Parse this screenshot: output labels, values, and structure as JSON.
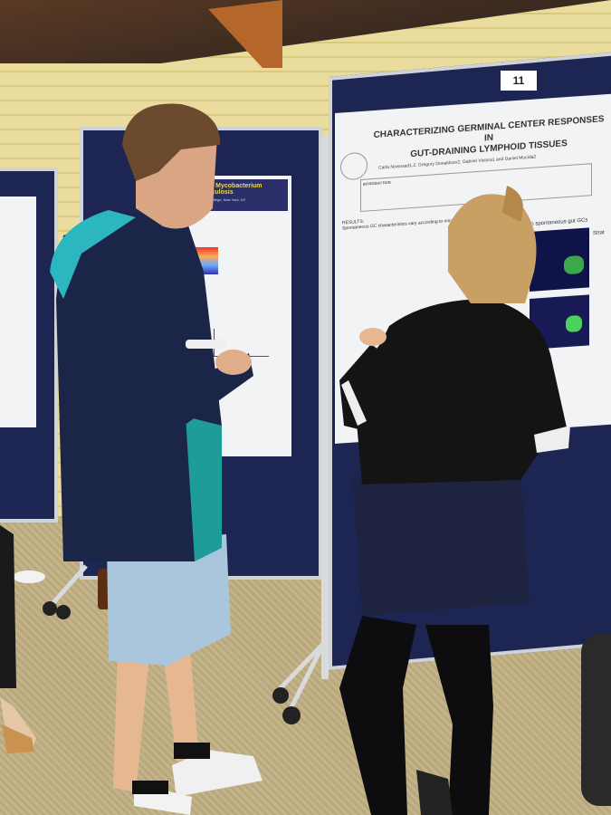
{
  "scene": "poster-session",
  "posters": {
    "right": {
      "number": "11",
      "title_line1": "CHARACTERIZING GERMINAL CENTER RESPONSES IN",
      "title_line2": "GUT-DRAINING LYMPHOID TISSUES",
      "authors": "Carla Nowosad1,2, Gregory Donaldson2, Gabriel Victora1 and Daniel Mucida2",
      "intro_label": "INTRODUCTION",
      "results_label": "RESULTS:",
      "results_text": "Spontaneous GC characteristics vary according to microbial load",
      "section_heading": "in spontaneous gut GCs",
      "side_heading": "Strat"
    },
    "middle": {
      "title": "ility in Mycobacterium tuberculosis",
      "affiliation": "Medical College, New York, NY"
    }
  },
  "colors": {
    "panel": "#1d2552",
    "wall": "#e9dc9c",
    "carpet": "#c4b48a"
  }
}
